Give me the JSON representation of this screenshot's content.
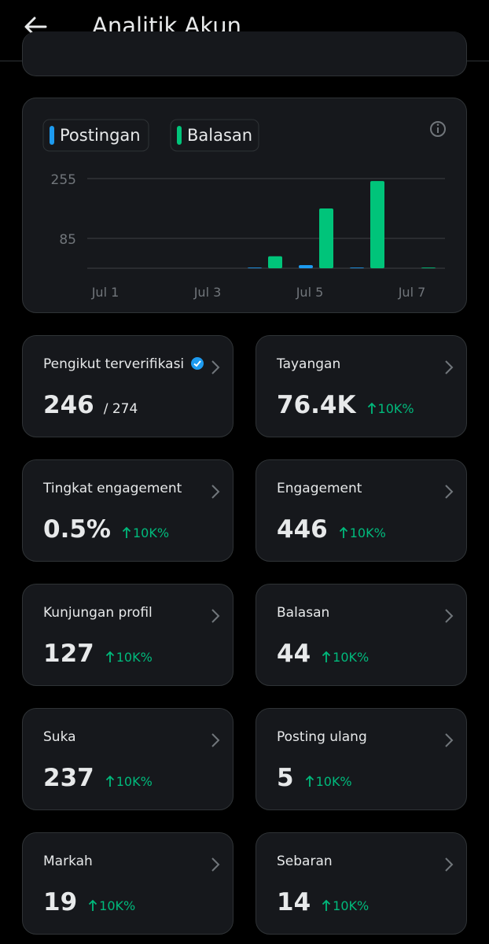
{
  "header": {
    "title": "Analitik Akun"
  },
  "chart_data": {
    "type": "bar",
    "categories": [
      "Jul 1",
      null,
      "Jul 3",
      null,
      "Jul 5",
      null,
      "Jul 7"
    ],
    "series": [
      {
        "name": "Postingan",
        "color": "#1d9bf0",
        "values": [
          0,
          0,
          0,
          2,
          9,
          2,
          0
        ]
      },
      {
        "name": "Balasan",
        "color": "#00c47a",
        "values": [
          0,
          0,
          0,
          34,
          170,
          248,
          2
        ]
      }
    ],
    "ylim": [
      0,
      255
    ],
    "yticks": [
      85,
      255
    ],
    "grid": true
  },
  "stats": [
    {
      "label": "Pengikut terverifikasi",
      "value": "246",
      "total": "/ 274"
    },
    {
      "label": "Tayangan",
      "value": "76.4K",
      "change": "10K%"
    },
    {
      "label": "Tingkat engagement",
      "value": "0.5%",
      "change": "10K%"
    },
    {
      "label": "Engagement",
      "value": "446",
      "change": "10K%"
    },
    {
      "label": "Kunjungan profil",
      "value": "127",
      "change": "10K%"
    },
    {
      "label": "Balasan",
      "value": "44",
      "change": "10K%"
    },
    {
      "label": "Suka",
      "value": "237",
      "change": "10K%"
    },
    {
      "label": "Posting ulang",
      "value": "5",
      "change": "10K%"
    },
    {
      "label": "Markah",
      "value": "19",
      "change": "10K%"
    },
    {
      "label": "Sebaran",
      "value": "14",
      "change": "10K%"
    }
  ]
}
